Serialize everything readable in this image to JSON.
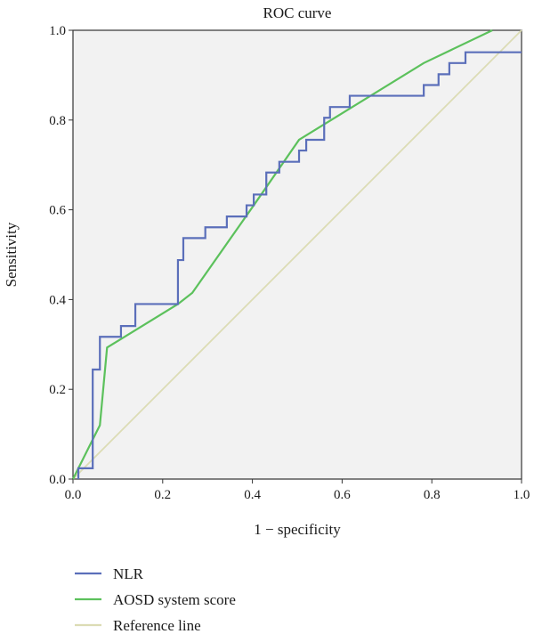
{
  "chart_data": {
    "type": "line",
    "title": "ROC curve",
    "xlabel": "1 − specificity",
    "ylabel": "Sensitivity",
    "xlim": [
      0,
      1
    ],
    "ylim": [
      0,
      1
    ],
    "xticks": [
      "0.0",
      "0.2",
      "0.4",
      "0.6",
      "0.8",
      "1.0"
    ],
    "yticks": [
      "0.0",
      "0.2",
      "0.4",
      "0.6",
      "0.8",
      "1.0"
    ],
    "grid": false,
    "legend": "bottom-left",
    "background": "#f2f2f2",
    "series": [
      {
        "name": "NLR",
        "color": "#5b6fba",
        "style": "step",
        "points": [
          [
            0.012,
            0.0
          ],
          [
            0.012,
            0.024
          ],
          [
            0.044,
            0.024
          ],
          [
            0.044,
            0.244
          ],
          [
            0.06,
            0.244
          ],
          [
            0.06,
            0.317
          ],
          [
            0.107,
            0.317
          ],
          [
            0.107,
            0.341
          ],
          [
            0.139,
            0.341
          ],
          [
            0.139,
            0.39
          ],
          [
            0.234,
            0.39
          ],
          [
            0.234,
            0.488
          ],
          [
            0.246,
            0.488
          ],
          [
            0.246,
            0.537
          ],
          [
            0.295,
            0.537
          ],
          [
            0.295,
            0.561
          ],
          [
            0.343,
            0.561
          ],
          [
            0.343,
            0.585
          ],
          [
            0.387,
            0.585
          ],
          [
            0.387,
            0.61
          ],
          [
            0.403,
            0.61
          ],
          [
            0.403,
            0.634
          ],
          [
            0.431,
            0.634
          ],
          [
            0.431,
            0.683
          ],
          [
            0.46,
            0.683
          ],
          [
            0.46,
            0.707
          ],
          [
            0.504,
            0.707
          ],
          [
            0.504,
            0.732
          ],
          [
            0.52,
            0.732
          ],
          [
            0.52,
            0.756
          ],
          [
            0.56,
            0.756
          ],
          [
            0.56,
            0.805
          ],
          [
            0.573,
            0.805
          ],
          [
            0.573,
            0.829
          ],
          [
            0.617,
            0.829
          ],
          [
            0.617,
            0.854
          ],
          [
            0.782,
            0.854
          ],
          [
            0.782,
            0.878
          ],
          [
            0.815,
            0.878
          ],
          [
            0.815,
            0.902
          ],
          [
            0.839,
            0.902
          ],
          [
            0.839,
            0.927
          ],
          [
            0.875,
            0.927
          ],
          [
            0.875,
            0.951
          ],
          [
            1.0,
            0.951
          ]
        ]
      },
      {
        "name": "AOSD system score",
        "color": "#5cc15c",
        "style": "line",
        "points": [
          [
            0.0,
            0.0
          ],
          [
            0.06,
            0.12
          ],
          [
            0.076,
            0.293
          ],
          [
            0.234,
            0.39
          ],
          [
            0.266,
            0.415
          ],
          [
            0.403,
            0.61
          ],
          [
            0.504,
            0.756
          ],
          [
            0.782,
            0.927
          ],
          [
            0.935,
            1.0
          ]
        ]
      },
      {
        "name": "Reference line",
        "color": "#dcdcb4",
        "style": "line",
        "points": [
          [
            0.0,
            0.0
          ],
          [
            1.0,
            1.0
          ]
        ]
      }
    ]
  }
}
